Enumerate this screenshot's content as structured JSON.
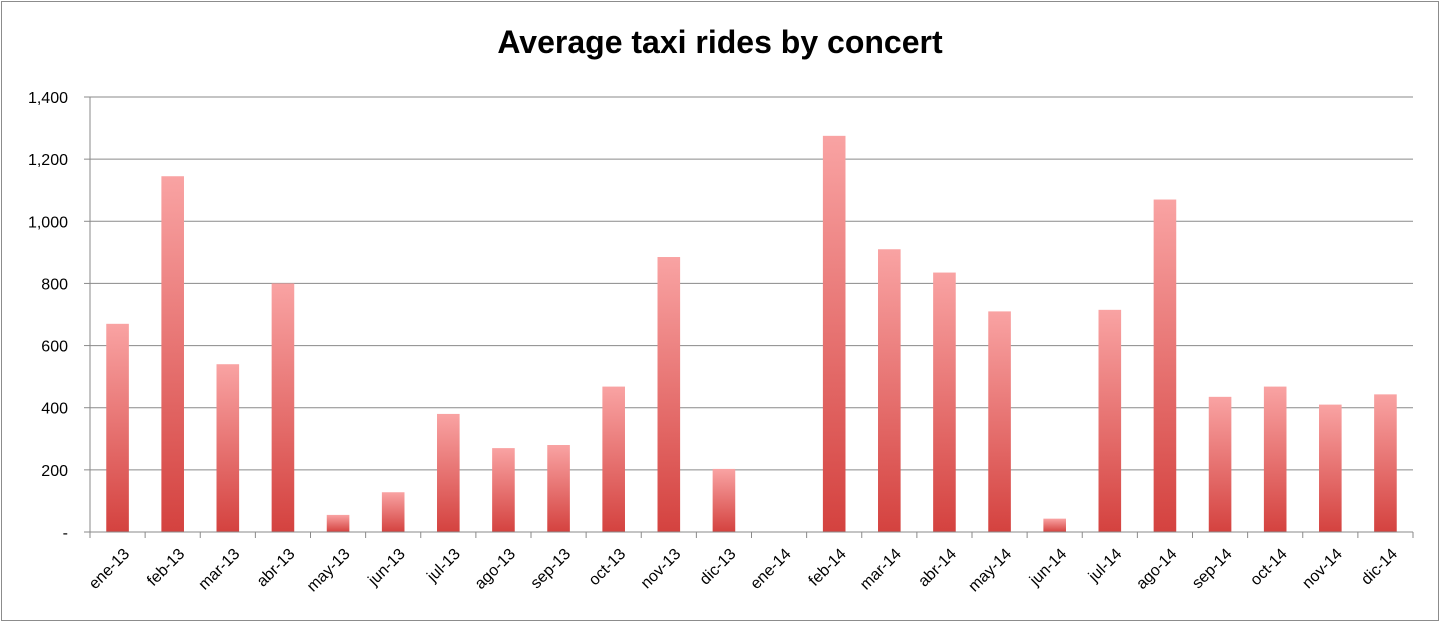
{
  "chart_data": {
    "type": "bar",
    "title": "Average taxi rides by concert",
    "xlabel": "",
    "ylabel": "",
    "ylim": [
      0,
      1400
    ],
    "yticks": [
      0,
      200,
      400,
      600,
      800,
      1000,
      1200,
      1400
    ],
    "ytick_labels": [
      "-",
      "200",
      "400",
      "600",
      "800",
      "1,000",
      "1,200",
      "1,400"
    ],
    "grid": true,
    "legend": "none",
    "bar_color_top": "#f9a3a3",
    "bar_color_bottom": "#d4423f",
    "categories": [
      "ene-13",
      "feb-13",
      "mar-13",
      "abr-13",
      "may-13",
      "jun-13",
      "jul-13",
      "ago-13",
      "sep-13",
      "oct-13",
      "nov-13",
      "dic-13",
      "ene-14",
      "feb-14",
      "mar-14",
      "abr-14",
      "may-14",
      "jun-14",
      "jul-14",
      "ago-14",
      "sep-14",
      "oct-14",
      "nov-14",
      "dic-14"
    ],
    "values": [
      670,
      1145,
      540,
      800,
      55,
      128,
      380,
      270,
      280,
      468,
      885,
      203,
      0,
      1275,
      910,
      835,
      710,
      43,
      715,
      1070,
      435,
      468,
      410,
      443
    ]
  }
}
